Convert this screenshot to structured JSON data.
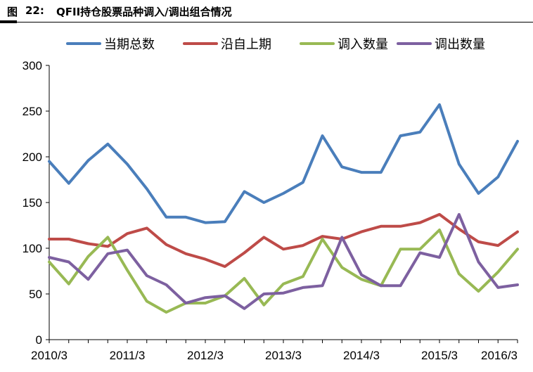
{
  "header": {
    "label": "图",
    "number": "22:",
    "title": "QFII持仓股票品种调入/调出组合情况"
  },
  "colors": {
    "current_total": "#4a7ebb",
    "held_along": "#be4b48",
    "transfer_in": "#98b954",
    "transfer_out": "#7d60a0",
    "axis": "#000000"
  },
  "chart_data": {
    "type": "line",
    "x": [
      "2010/3",
      "2010/6",
      "2010/9",
      "2010/12",
      "2011/3",
      "2011/6",
      "2011/9",
      "2011/12",
      "2012/3",
      "2012/6",
      "2012/9",
      "2012/12",
      "2013/3",
      "2013/6",
      "2013/9",
      "2013/12",
      "2014/3",
      "2014/6",
      "2014/9",
      "2014/12",
      "2015/3",
      "2015/6",
      "2015/9",
      "2015/12",
      "2016/3"
    ],
    "xticks": [
      "2010/3",
      "2011/3",
      "2012/3",
      "2013/3",
      "2014/3",
      "2015/3",
      "2016/3"
    ],
    "ylim": [
      0,
      300
    ],
    "yticks": [
      0,
      50,
      100,
      150,
      200,
      250,
      300
    ],
    "grid": false,
    "legend_position": "top",
    "title": "",
    "xlabel": "",
    "ylabel": "",
    "series": [
      {
        "name": "当期总数",
        "color": "#4a7ebb",
        "values": [
          195,
          171,
          196,
          214,
          192,
          165,
          134,
          134,
          128,
          129,
          162,
          150,
          160,
          172,
          223,
          189,
          183,
          183,
          223,
          227,
          257,
          192,
          160,
          178,
          217
        ]
      },
      {
        "name": "沿自上期",
        "color": "#be4b48",
        "values": [
          110,
          110,
          105,
          102,
          116,
          122,
          104,
          94,
          88,
          80,
          95,
          112,
          99,
          103,
          113,
          110,
          118,
          124,
          124,
          128,
          137,
          121,
          107,
          103,
          118
        ]
      },
      {
        "name": "调入数量",
        "color": "#98b954",
        "values": [
          85,
          61,
          91,
          112,
          76,
          42,
          30,
          40,
          40,
          48,
          67,
          38,
          61,
          69,
          110,
          79,
          66,
          59,
          99,
          99,
          120,
          72,
          53,
          74,
          99
        ]
      },
      {
        "name": "调出数量",
        "color": "#7d60a0",
        "values": [
          90,
          85,
          66,
          94,
          98,
          70,
          60,
          40,
          46,
          48,
          34,
          50,
          51,
          57,
          59,
          112,
          71,
          59,
          59,
          95,
          90,
          137,
          85,
          57,
          60
        ]
      }
    ]
  }
}
